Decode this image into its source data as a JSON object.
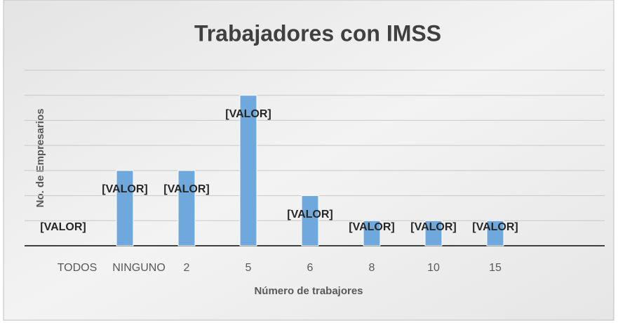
{
  "chart_data": {
    "type": "bar",
    "title": "Trabajadores con IMSS",
    "x_label": "Número de trabajores",
    "y_label": "No. de Empresarios",
    "categories": [
      "TODOS",
      "NINGUNO",
      "2",
      "5",
      "6",
      "8",
      "10",
      "15"
    ],
    "values": [
      0,
      3,
      3,
      6,
      2,
      1,
      1,
      1
    ],
    "value_labels": [
      "[VALOR]",
      "[VALOR]",
      "[VALOR]",
      "[VALOR]",
      "[VALOR]",
      "[VALOR]",
      "[VALOR]",
      "[VALOR]"
    ],
    "color": "#6fa8dc",
    "ylim": [
      0,
      7
    ],
    "yticks": [
      0,
      1,
      2,
      3,
      4,
      5,
      6,
      7
    ],
    "grid": true
  }
}
